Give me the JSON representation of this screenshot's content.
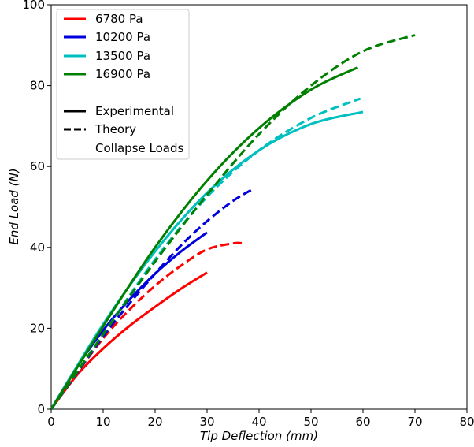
{
  "chart_data": {
    "type": "line",
    "title": "",
    "xlabel": "Tip Deflection (mm)",
    "ylabel": "End Load (N)",
    "xlim": [
      0,
      80
    ],
    "ylim": [
      0,
      100
    ],
    "xticks": [
      0,
      10,
      20,
      30,
      40,
      50,
      60,
      70,
      80
    ],
    "yticks": [
      0,
      20,
      40,
      60,
      80,
      100
    ],
    "grid": false,
    "legend_position": "top-left",
    "series": [
      {
        "name": "6780 Pa",
        "style": "Experimental",
        "color": "#ff0000",
        "x": [
          0,
          5,
          10,
          15,
          20,
          25,
          30
        ],
        "y": [
          0,
          8.5,
          15.0,
          20.5,
          25.3,
          29.8,
          33.8
        ]
      },
      {
        "name": "6780 Pa",
        "style": "Theory",
        "color": "#ff0000",
        "x": [
          0,
          5,
          10,
          15,
          20,
          25,
          30,
          35,
          37
        ],
        "y": [
          0,
          9.0,
          17.5,
          24.5,
          30.5,
          35.5,
          39.5,
          41.0,
          41.0
        ]
      },
      {
        "name": "10200 Pa",
        "style": "Experimental",
        "color": "#0000dd",
        "x": [
          0,
          5,
          10,
          15,
          20,
          25,
          30
        ],
        "y": [
          0,
          10.5,
          19.5,
          27.0,
          33.5,
          39.0,
          43.7
        ]
      },
      {
        "name": "10200 Pa",
        "style": "Theory",
        "color": "#0000dd",
        "x": [
          0,
          5,
          10,
          15,
          20,
          25,
          30,
          35,
          38.5
        ],
        "y": [
          0,
          9.0,
          18.0,
          26.0,
          33.5,
          40.5,
          46.5,
          51.5,
          54.2
        ]
      },
      {
        "name": "13500 Pa",
        "style": "Experimental",
        "color": "#00bfbf",
        "x": [
          0,
          10,
          20,
          30,
          40,
          50,
          60
        ],
        "y": [
          0,
          21.0,
          39.0,
          53.5,
          64.0,
          70.5,
          73.5
        ]
      },
      {
        "name": "13500 Pa",
        "style": "Theory",
        "color": "#00bfbf",
        "x": [
          0,
          10,
          20,
          30,
          40,
          50,
          59.5
        ],
        "y": [
          0,
          18.5,
          37.0,
          52.5,
          64.0,
          72.0,
          76.8
        ]
      },
      {
        "name": "16900 Pa",
        "style": "Experimental",
        "color": "#008000",
        "x": [
          0,
          10,
          20,
          30,
          40,
          50,
          59
        ],
        "y": [
          0,
          20.5,
          40.0,
          56.5,
          69.5,
          79.0,
          84.5
        ]
      },
      {
        "name": "16900 Pa",
        "style": "Theory",
        "color": "#008000",
        "x": [
          0,
          10,
          20,
          30,
          40,
          50,
          60,
          70
        ],
        "y": [
          0,
          18.5,
          36.5,
          53.0,
          68.0,
          80.0,
          88.5,
          92.5
        ]
      }
    ],
    "legend": {
      "pressures": [
        {
          "label": "6780 Pa",
          "color": "#ff0000"
        },
        {
          "label": "10200 Pa",
          "color": "#0000dd"
        },
        {
          "label": "13500 Pa",
          "color": "#00bfbf"
        },
        {
          "label": "16900 Pa",
          "color": "#008000"
        }
      ],
      "styles": [
        {
          "label": "Experimental",
          "dash": "solid"
        },
        {
          "label": "Theory",
          "dash": "dashed"
        },
        {
          "label": "Collapse Loads",
          "dash": "none"
        }
      ]
    }
  }
}
